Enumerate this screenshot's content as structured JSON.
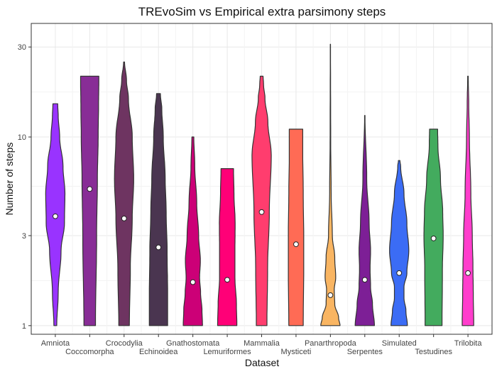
{
  "chart_data": {
    "type": "violin",
    "title": "TREvoSim vs Empirical extra parsimony steps",
    "xlabel": "Dataset",
    "ylabel": "Number of steps",
    "y_scale": "log10",
    "ylim": [
      0.9,
      40
    ],
    "y_ticks": [
      1,
      3,
      10,
      30
    ],
    "y_tick_labels": [
      "1",
      "3",
      "10",
      "30"
    ],
    "grid": true,
    "legend": "none",
    "categories": [
      "Amniota",
      "Coccomorpha",
      "Crocodylia",
      "Echinoidea",
      "Gnathostomata",
      "Lemuriformes",
      "Mammalia",
      "Mysticeti",
      "Panarthropoda",
      "Serpentes",
      "Simulated",
      "Testudines",
      "Trilobita"
    ],
    "series": [
      {
        "category": "Amniota",
        "color": "#9933ff",
        "min": 1,
        "max": 15,
        "mean": 3.8,
        "density": [
          [
            1,
            0.15
          ],
          [
            1.5,
            0.3
          ],
          [
            2.5,
            0.6
          ],
          [
            3.5,
            0.95
          ],
          [
            5,
            1.0
          ],
          [
            7,
            0.8
          ],
          [
            10,
            0.45
          ],
          [
            13,
            0.3
          ],
          [
            15,
            0.25
          ]
        ]
      },
      {
        "category": "Coccomorpha",
        "color": "#882d96",
        "min": 1,
        "max": 21,
        "mean": 5.3,
        "density": [
          [
            1,
            0.6
          ],
          [
            3,
            0.72
          ],
          [
            6,
            0.8
          ],
          [
            10,
            0.88
          ],
          [
            15,
            0.92
          ],
          [
            20,
            0.95
          ],
          [
            21,
            0.95
          ]
        ]
      },
      {
        "category": "Crocodylia",
        "color": "#6e3461",
        "min": 1,
        "max": 25,
        "mean": 3.7,
        "density": [
          [
            1,
            0.55
          ],
          [
            2,
            0.65
          ],
          [
            3.7,
            0.85
          ],
          [
            6,
            1.0
          ],
          [
            10,
            0.85
          ],
          [
            16,
            0.45
          ],
          [
            20,
            0.25
          ],
          [
            25,
            0.05
          ]
        ]
      },
      {
        "category": "Echinoidea",
        "color": "#4a3550",
        "min": 1,
        "max": 17,
        "mean": 2.6,
        "density": [
          [
            1,
            0.95
          ],
          [
            1.5,
            0.95
          ],
          [
            2.5,
            0.9
          ],
          [
            4,
            0.8
          ],
          [
            6,
            0.7
          ],
          [
            10,
            0.5
          ],
          [
            14,
            0.35
          ],
          [
            17,
            0.2
          ]
        ]
      },
      {
        "category": "Gnathostomata",
        "color": "#cc0077",
        "min": 1,
        "max": 10,
        "mean": 1.7,
        "density": [
          [
            1,
            1.0
          ],
          [
            1.2,
            0.95
          ],
          [
            1.5,
            0.8
          ],
          [
            1.8,
            0.7
          ],
          [
            2.2,
            0.78
          ],
          [
            3,
            0.6
          ],
          [
            4.5,
            0.4
          ],
          [
            7,
            0.2
          ],
          [
            10,
            0.1
          ]
        ]
      },
      {
        "category": "Lemuriformes",
        "color": "#ff0077",
        "min": 1,
        "max": 6.8,
        "mean": 1.75,
        "density": [
          [
            1,
            1.0
          ],
          [
            1.3,
            0.95
          ],
          [
            1.8,
            0.8
          ],
          [
            2.5,
            0.8
          ],
          [
            3.5,
            0.82
          ],
          [
            5,
            0.7
          ],
          [
            6.8,
            0.65
          ]
        ]
      },
      {
        "category": "Mammalia",
        "color": "#ff3d6e",
        "min": 1,
        "max": 21,
        "mean": 4,
        "density": [
          [
            1,
            0.55
          ],
          [
            2,
            0.62
          ],
          [
            4,
            0.8
          ],
          [
            8,
            1.0
          ],
          [
            12,
            0.65
          ],
          [
            16,
            0.35
          ],
          [
            19,
            0.2
          ],
          [
            21,
            0.15
          ]
        ]
      },
      {
        "category": "Mysticeti",
        "color": "#ff6b55",
        "min": 1,
        "max": 11,
        "mean": 2.7,
        "density": [
          [
            1,
            0.75
          ],
          [
            2,
            0.8
          ],
          [
            3,
            0.8
          ],
          [
            5,
            0.75
          ],
          [
            8,
            0.7
          ],
          [
            11,
            0.7
          ]
        ]
      },
      {
        "category": "Panarthropoda",
        "color": "#f9b562",
        "min": 1,
        "max": 31,
        "mean": 1.45,
        "density": [
          [
            1,
            1.0
          ],
          [
            1.1,
            0.85
          ],
          [
            1.3,
            0.45
          ],
          [
            1.55,
            0.4
          ],
          [
            1.8,
            0.55
          ],
          [
            2.3,
            0.45
          ],
          [
            3,
            0.2
          ],
          [
            5,
            0.08
          ],
          [
            10,
            0.03
          ],
          [
            31,
            0.01
          ]
        ]
      },
      {
        "category": "Serpentes",
        "color": "#7d1f96",
        "min": 1,
        "max": 13,
        "mean": 1.75,
        "density": [
          [
            1,
            1.0
          ],
          [
            1.3,
            0.8
          ],
          [
            1.6,
            0.6
          ],
          [
            2,
            0.55
          ],
          [
            2.5,
            0.6
          ],
          [
            3.5,
            0.45
          ],
          [
            6,
            0.2
          ],
          [
            13,
            0.02
          ]
        ]
      },
      {
        "category": "Simulated",
        "color": "#3b6cf5",
        "min": 1,
        "max": 7.5,
        "mean": 1.9,
        "density": [
          [
            1,
            0.85
          ],
          [
            1.2,
            0.7
          ],
          [
            1.4,
            0.5
          ],
          [
            1.6,
            0.5
          ],
          [
            1.9,
            0.8
          ],
          [
            2.5,
            1.0
          ],
          [
            3.5,
            0.8
          ],
          [
            5,
            0.5
          ],
          [
            7,
            0.15
          ],
          [
            7.5,
            0.08
          ]
        ]
      },
      {
        "category": "Testudines",
        "color": "#43ab5e",
        "min": 1,
        "max": 11,
        "mean": 2.9,
        "density": [
          [
            1,
            0.88
          ],
          [
            2,
            0.92
          ],
          [
            3,
            1.0
          ],
          [
            4,
            0.95
          ],
          [
            6,
            0.72
          ],
          [
            9,
            0.45
          ],
          [
            11,
            0.42
          ]
        ]
      },
      {
        "category": "Trilobita",
        "color": "#ff3dcc",
        "min": 1,
        "max": 21,
        "mean": 1.9,
        "density": [
          [
            1,
            0.6
          ],
          [
            1.5,
            0.55
          ],
          [
            2,
            0.52
          ],
          [
            3,
            0.45
          ],
          [
            5,
            0.3
          ],
          [
            10,
            0.15
          ],
          [
            15,
            0.08
          ],
          [
            21,
            0.03
          ]
        ]
      }
    ]
  }
}
